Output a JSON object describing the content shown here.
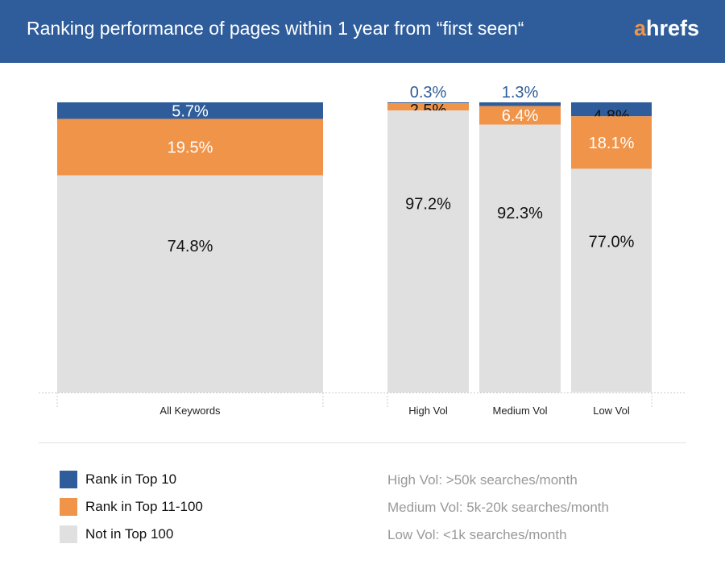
{
  "header": {
    "title": "Ranking performance of pages within 1 year from “first seen“",
    "logo": "ahrefs"
  },
  "colors": {
    "top10": "#2f5d9b",
    "top11_100": "#f0944a",
    "not_top100": "#e0e0e0",
    "header": "#2f5d9b"
  },
  "chart_data": {
    "type": "bar",
    "stacked": true,
    "categories": [
      "All Keywords",
      "High Vol",
      "Medium Vol",
      "Low Vol"
    ],
    "series": [
      {
        "name": "Rank in Top 10",
        "values": [
          5.7,
          0.3,
          1.3,
          4.8
        ],
        "labels": [
          "5.7%",
          "0.3%",
          "1.3%",
          "4.8%"
        ]
      },
      {
        "name": "Rank in Top 11-100",
        "values": [
          19.5,
          2.5,
          6.4,
          18.1
        ],
        "labels": [
          "19.5%",
          "2.5%",
          "6.4%",
          "18.1%"
        ]
      },
      {
        "name": "Not in Top 100",
        "values": [
          74.8,
          97.2,
          92.3,
          77.0
        ],
        "labels": [
          "74.8%",
          "97.2%",
          "92.3%",
          "77.0%"
        ]
      }
    ],
    "ylim": [
      0,
      100
    ],
    "grid": false,
    "legend": "bottom-left"
  },
  "notes": [
    "High Vol: >50k searches/month",
    "Medium Vol: 5k-20k searches/month",
    "Low Vol: <1k searches/month"
  ]
}
